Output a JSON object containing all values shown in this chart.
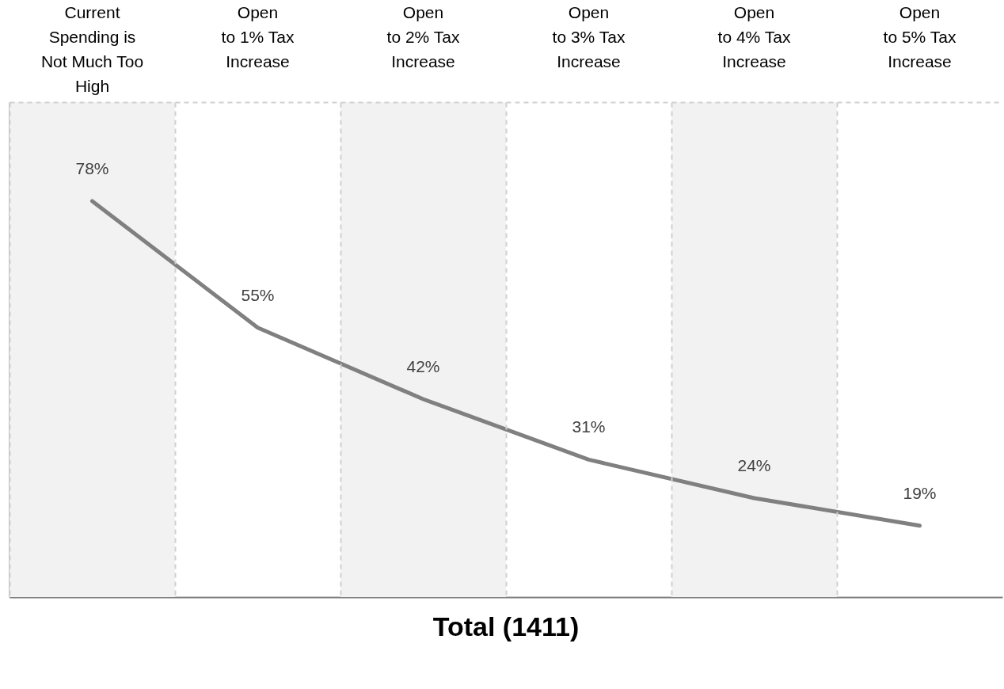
{
  "chart_data": {
    "type": "line",
    "title": "Total (1411)",
    "categories": [
      "Current\nSpending is\nNot Much Too\nHigh",
      "Open\nto 1% Tax\nIncrease",
      "Open\nto 2% Tax\nIncrease",
      "Open\nto 3% Tax\nIncrease",
      "Open\nto 4% Tax\nIncrease",
      "Open\nto 5% Tax\nIncrease"
    ],
    "series": [
      {
        "color": "#808080",
        "values": [
          78,
          55,
          42,
          31,
          24,
          19
        ],
        "value_labels": [
          "78%",
          "55%",
          "42%",
          "31%",
          "24%",
          "19%"
        ]
      }
    ],
    "ylim": [
      6,
      96
    ],
    "tick_labels": "x",
    "grid": "x",
    "marker": "none",
    "bands": [
      {
        "axis": "x",
        "from": "Current\nSpending is\nNot Much Too\nHigh",
        "to": "Current\nSpending is\nNot Much Too\nHigh",
        "color": "#f2f2f2"
      },
      {
        "axis": "x",
        "from": "Open\nto 2% Tax\nIncrease",
        "to": "Open\nto 2% Tax\nIncrease",
        "color": "#f2f2f2"
      },
      {
        "axis": "x",
        "from": "Open\nto 4% Tax\nIncrease",
        "to": "Open\nto 4% Tax\nIncrease",
        "color": "#f2f2f2"
      }
    ]
  }
}
